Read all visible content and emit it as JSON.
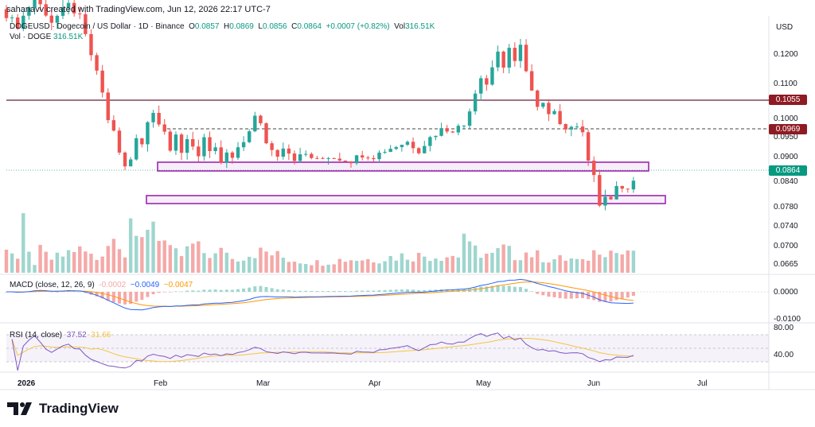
{
  "header": {
    "created_by": "sahanavv created with TradingView.com, Jun 12, 2026 22:17 UTC-7"
  },
  "legend": {
    "symbol": "DOGEUSD · Dogecoin / US Dollar · 1D · Binance",
    "open_label": "O",
    "open": "0.0857",
    "high_label": "H",
    "high": "0.0869",
    "low_label": "L",
    "low": "0.0856",
    "close_label": "C",
    "close": "0.0864",
    "change": "+0.0007 (+0.82%)",
    "vol_label": "Vol",
    "vol": "316.51K",
    "vol_line_label": "Vol · DOGE",
    "vol_line_value": "316.51K"
  },
  "price_axis": {
    "currency": "USD",
    "ticks": [
      "0.1200",
      "0.1100",
      "0.1000",
      "0.0950",
      "0.0900",
      "0.0840",
      "0.0780",
      "0.0740",
      "0.0700",
      "0.0665"
    ],
    "tags": [
      {
        "value": "0.1055",
        "color": "#8e1b23"
      },
      {
        "value": "0.0969",
        "color": "#8e1b23"
      },
      {
        "value": "0.0864",
        "color": "#089981"
      }
    ]
  },
  "time_axis": {
    "labels": [
      "2026",
      "Feb",
      "Mar",
      "Apr",
      "May",
      "Jun",
      "Jul"
    ]
  },
  "macd": {
    "title": "MACD (close, 12, 26, 9)",
    "hist": "-0.0002",
    "macd": "−0.0049",
    "signal": "−0.0047",
    "ticks": [
      "0.0000",
      "-0.0100"
    ]
  },
  "rsi": {
    "title": "RSI (14, close)",
    "rsi": "37.52",
    "ma": "31.66",
    "ticks": [
      "80.00",
      "40.00"
    ]
  },
  "branding": {
    "logo_text": "TradingView"
  },
  "colors": {
    "up": "#26a69a",
    "down": "#ef5350",
    "up_vol": "#9fd6cf",
    "down_vol": "#f4a9a8",
    "zone": "#9b27b0",
    "resistance": "#6b1e3a",
    "macd_line": "#2962ff",
    "signal_line": "#ff9800",
    "rsi_line": "#7e57c2"
  },
  "chart_data": {
    "type": "candlestick",
    "symbol": "DOGEUSD",
    "interval": "1D",
    "x_range": [
      "2025-12-26",
      "2026-07-14"
    ],
    "ylim": [
      0.065,
      0.126
    ],
    "last": {
      "open": 0.0857,
      "high": 0.0869,
      "low": 0.0856,
      "close": 0.0864,
      "volume": "316.51K"
    },
    "horizontal_levels": [
      0.1055,
      0.0969
    ],
    "zones": [
      {
        "low": 0.0868,
        "high": 0.0882,
        "from": "2026-02-01",
        "to": "2026-06-13"
      },
      {
        "low": 0.0782,
        "high": 0.0796,
        "from": "2026-01-31",
        "to": "2026-06-16"
      }
    ],
    "price_path": [
      [
        0,
        0.128
      ],
      [
        6,
        0.124
      ],
      [
        12,
        0.131
      ],
      [
        18,
        0.125
      ],
      [
        24,
        0.129
      ],
      [
        28,
        0.126
      ],
      [
        32,
        0.117
      ],
      [
        36,
        0.108
      ],
      [
        38,
        0.101
      ],
      [
        40,
        0.099
      ],
      [
        42,
        0.093
      ],
      [
        44,
        0.09
      ],
      [
        46,
        0.0915
      ],
      [
        48,
        0.097
      ],
      [
        50,
        0.096
      ],
      [
        52,
        0.101
      ],
      [
        54,
        0.103
      ],
      [
        56,
        0.101
      ],
      [
        58,
        0.099
      ],
      [
        60,
        0.094
      ],
      [
        62,
        0.097
      ],
      [
        64,
        0.093
      ],
      [
        66,
        0.097
      ],
      [
        68,
        0.095
      ],
      [
        70,
        0.093
      ],
      [
        72,
        0.097
      ],
      [
        74,
        0.093
      ],
      [
        76,
        0.094
      ],
      [
        78,
        0.091
      ],
      [
        80,
        0.093
      ],
      [
        82,
        0.092
      ],
      [
        84,
        0.094
      ],
      [
        86,
        0.096
      ],
      [
        88,
        0.099
      ],
      [
        90,
        0.102
      ],
      [
        92,
        0.1
      ],
      [
        94,
        0.096
      ],
      [
        96,
        0.094
      ],
      [
        98,
        0.093
      ],
      [
        100,
        0.095
      ],
      [
        104,
        0.092
      ],
      [
        108,
        0.093
      ],
      [
        112,
        0.0915
      ],
      [
        116,
        0.0925
      ],
      [
        120,
        0.092
      ],
      [
        124,
        0.0915
      ],
      [
        128,
        0.093
      ],
      [
        132,
        0.0925
      ],
      [
        136,
        0.094
      ],
      [
        140,
        0.095
      ],
      [
        144,
        0.096
      ],
      [
        148,
        0.094
      ],
      [
        152,
        0.097
      ],
      [
        156,
        0.099
      ],
      [
        160,
        0.099
      ],
      [
        164,
        0.1
      ],
      [
        166,
        0.104
      ],
      [
        168,
        0.108
      ],
      [
        170,
        0.112
      ],
      [
        172,
        0.11
      ],
      [
        174,
        0.114
      ],
      [
        176,
        0.118
      ],
      [
        178,
        0.114
      ],
      [
        180,
        0.118
      ],
      [
        182,
        0.115
      ],
      [
        184,
        0.12
      ],
      [
        186,
        0.113
      ],
      [
        188,
        0.108
      ],
      [
        190,
        0.104
      ],
      [
        192,
        0.105
      ],
      [
        194,
        0.102
      ],
      [
        196,
        0.104
      ],
      [
        198,
        0.101
      ],
      [
        200,
        0.099
      ],
      [
        202,
        0.1
      ],
      [
        204,
        0.099
      ],
      [
        206,
        0.099
      ],
      [
        208,
        0.092
      ],
      [
        210,
        0.088
      ],
      [
        212,
        0.08
      ],
      [
        214,
        0.083
      ],
      [
        216,
        0.082
      ],
      [
        218,
        0.085
      ],
      [
        220,
        0.084
      ],
      [
        222,
        0.085
      ],
      [
        224,
        0.0864
      ]
    ],
    "volume_path": [
      [
        0,
        0.9
      ],
      [
        4,
        0.4
      ],
      [
        6,
        1.3
      ],
      [
        8,
        0.5
      ],
      [
        10,
        0.3
      ],
      [
        12,
        0.6
      ],
      [
        16,
        0.4
      ],
      [
        20,
        0.5
      ],
      [
        24,
        0.7
      ],
      [
        28,
        0.6
      ],
      [
        32,
        0.4
      ],
      [
        36,
        0.9
      ],
      [
        40,
        1.1
      ],
      [
        42,
        0.6
      ],
      [
        44,
        1.7
      ],
      [
        46,
        0.8
      ],
      [
        48,
        0.9
      ],
      [
        50,
        1.5
      ],
      [
        52,
        1.6
      ],
      [
        54,
        1.2
      ],
      [
        56,
        0.9
      ],
      [
        58,
        0.6
      ],
      [
        62,
        0.5
      ],
      [
        66,
        0.8
      ],
      [
        70,
        0.6
      ],
      [
        74,
        0.5
      ],
      [
        78,
        0.7
      ],
      [
        80,
        0.4
      ],
      [
        84,
        0.5
      ],
      [
        88,
        0.6
      ],
      [
        92,
        0.6
      ],
      [
        96,
        0.5
      ],
      [
        100,
        0.4
      ],
      [
        110,
        0.3
      ],
      [
        120,
        0.4
      ],
      [
        130,
        0.4
      ],
      [
        140,
        0.5
      ],
      [
        150,
        0.5
      ],
      [
        160,
        0.5
      ],
      [
        162,
        1.2
      ],
      [
        164,
        0.7
      ],
      [
        168,
        0.6
      ],
      [
        172,
        0.5
      ],
      [
        176,
        0.7
      ],
      [
        180,
        0.5
      ],
      [
        184,
        0.6
      ],
      [
        188,
        0.5
      ],
      [
        192,
        0.4
      ],
      [
        196,
        0.4
      ],
      [
        200,
        0.4
      ],
      [
        204,
        0.3
      ],
      [
        208,
        0.6
      ],
      [
        210,
        0.8
      ],
      [
        212,
        0.7
      ],
      [
        216,
        0.6
      ],
      [
        220,
        0.5
      ],
      [
        224,
        0.9
      ]
    ]
  }
}
